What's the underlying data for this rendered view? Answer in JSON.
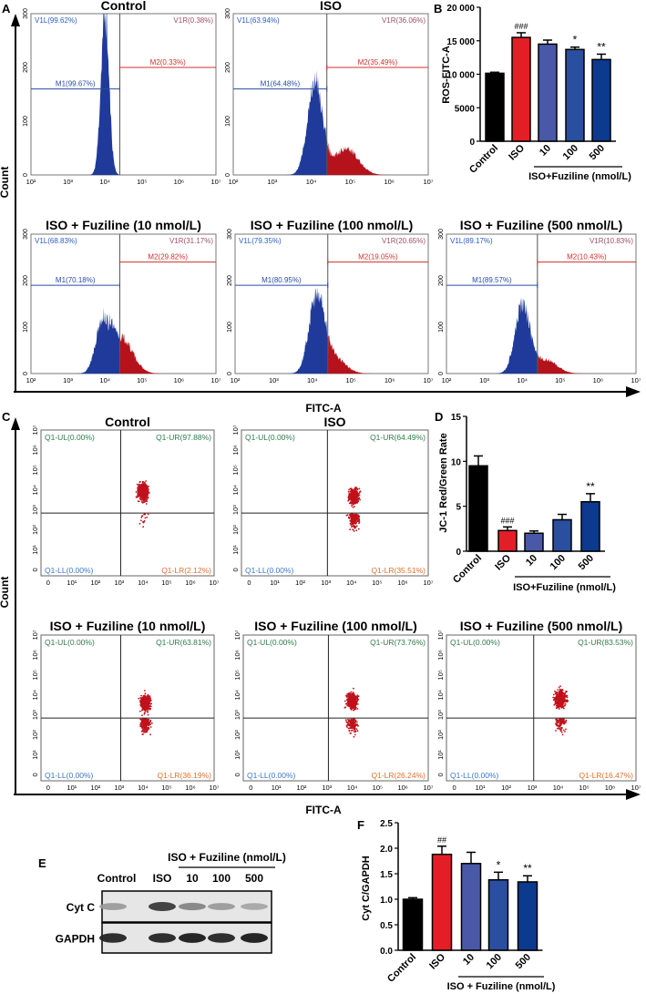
{
  "panel_labels": {
    "A": "A",
    "B": "B",
    "C": "C",
    "D": "D",
    "E": "E",
    "F": "F"
  },
  "panel_a": {
    "ylabel": "Count",
    "xlabel": "FITC-A",
    "yticks": [
      "0",
      "100",
      "200",
      "300"
    ],
    "xticks": [
      "10²",
      "10³",
      "10⁴",
      "10⁵",
      "10⁶",
      "10⁷"
    ],
    "histograms": [
      {
        "title": "Control",
        "v1l": "V1L(99.62%)",
        "v1r": "V1R(0.38%)",
        "m1": "M1(99.67%)",
        "m2": "M2(0.33%)",
        "peak_log10": 4.0,
        "peak_count": 300,
        "tail_log10": 4.9,
        "tail_count": 0
      },
      {
        "title": "ISO",
        "v1l": "V1L(63.94%)",
        "v1r": "V1R(36.06%)",
        "m1": "M1(64.48%)",
        "m2": "M2(35.49%)",
        "peak_log10": 4.1,
        "peak_count": 180,
        "tail_log10": 4.9,
        "tail_count": 50
      },
      {
        "title": "ISO + Fuziline (10 nmol/L)",
        "v1l": "V1L(68.83%)",
        "v1r": "V1R(31.17%)",
        "m1": "M1(70.18%)",
        "m2": "M2(29.82%)",
        "peak_log10": 3.95,
        "peak_count": 120,
        "tail_log10": 4.45,
        "tail_count": 75
      },
      {
        "title": "ISO + Fuziline (100 nmol/L)",
        "v1l": "V1L(79.35%)",
        "v1r": "V1R(20.65%)",
        "m1": "M1(80.95%)",
        "m2": "M2(19.05%)",
        "peak_log10": 4.1,
        "peak_count": 165,
        "tail_log10": 4.5,
        "tail_count": 40
      },
      {
        "title": "ISO + Fuziline (500 nmol/L)",
        "v1l": "V1L(89.17%)",
        "v1r": "V1R(10.83%)",
        "m1": "M1(89.57%)",
        "m2": "M2(10.43%)",
        "peak_log10": 4.0,
        "peak_count": 150,
        "tail_log10": 4.6,
        "tail_count": 30
      }
    ]
  },
  "panel_c": {
    "ylabel": "Count",
    "xlabel": "FITC-A",
    "ticks": [
      "0",
      "10¹",
      "10²",
      "10³",
      "10⁴",
      "10⁵",
      "10⁶",
      "10⁷"
    ],
    "scatters": [
      {
        "title": "Control",
        "ul": "Q1-UL(0.00%)",
        "ur": "Q1-UR(97.88%)",
        "ll": "Q1-LL(0.00%)",
        "lr": "Q1-LR(2.12%)",
        "lr_fraction": 0.0212,
        "center_x_log10": 4.0,
        "center_y_log10": 3.9
      },
      {
        "title": "ISO",
        "ul": "Q1-UL(0.00%)",
        "ur": "Q1-UR(64.49%)",
        "ll": "Q1-LL(0.00%)",
        "lr": "Q1-LR(35.51%)",
        "lr_fraction": 0.3551,
        "center_x_log10": 4.1,
        "center_y_log10": 3.7
      },
      {
        "title": "ISO + Fuziline (10 nmol/L)",
        "ul": "Q1-UL(0.00%)",
        "ur": "Q1-UR(63.81%)",
        "ll": "Q1-LL(0.00%)",
        "lr": "Q1-LR(36.19%)",
        "lr_fraction": 0.3619,
        "center_x_log10": 4.1,
        "center_y_log10": 3.6
      },
      {
        "title": "ISO + Fuziline (100 nmol/L)",
        "ul": "Q1-UL(0.00%)",
        "ur": "Q1-UR(73.76%)",
        "ll": "Q1-LL(0.00%)",
        "lr": "Q1-LR(26.24%)",
        "lr_fraction": 0.2624,
        "center_x_log10": 4.0,
        "center_y_log10": 3.7
      },
      {
        "title": "ISO + Fuziline (500 nmol/L)",
        "ul": "Q1-UL(0.00%)",
        "ur": "Q1-UR(83.53%)",
        "ll": "Q1-LL(0.00%)",
        "lr": "Q1-LR(16.47%)",
        "lr_fraction": 0.1647,
        "center_x_log10": 4.1,
        "center_y_log10": 3.8
      }
    ]
  },
  "panel_e": {
    "group_label": "ISO + Fuziline (nmol/L)",
    "lanes": [
      "Control",
      "ISO",
      "10",
      "100",
      "500"
    ],
    "rows": [
      {
        "label": "Cyt C",
        "intensity": [
          0.35,
          0.8,
          0.45,
          0.35,
          0.3
        ]
      },
      {
        "label": "GAPDH",
        "intensity": [
          0.9,
          0.9,
          0.95,
          0.9,
          0.95
        ]
      }
    ]
  },
  "colors": {
    "control": "#000000",
    "iso": "#e41e26",
    "f10": "#4a58a8",
    "f100": "#2a4ea0",
    "f500": "#0c3a8e",
    "hist_blue": "#1f3a9a",
    "hist_red": "#b5121b",
    "dot": "#c0121c"
  },
  "chart_data": [
    {
      "id": "B",
      "type": "bar",
      "ylabel": "ROS-FITC-A",
      "xlabel": "ISO+Fuziline (nmol/L)",
      "categories": [
        "Control",
        "ISO",
        "10",
        "100",
        "500"
      ],
      "values": [
        10150,
        15500,
        14500,
        13700,
        12200
      ],
      "errors": [
        150,
        700,
        600,
        350,
        800
      ],
      "annotations": [
        "",
        "###",
        "",
        "*",
        "**"
      ],
      "ylim": [
        0,
        20000
      ],
      "yticks": [
        0,
        5000,
        10000,
        15000,
        20000
      ],
      "ytick_labels": [
        "0",
        "5000",
        "10 000",
        "15 000",
        "20 000"
      ]
    },
    {
      "id": "D",
      "type": "bar",
      "ylabel": "JC-1 Red/Green Rate",
      "xlabel": "ISO+Fuziline (nmol/L)",
      "categories": [
        "Control",
        "ISO",
        "10",
        "100",
        "500"
      ],
      "values": [
        9.5,
        2.3,
        2.0,
        3.5,
        5.5
      ],
      "errors": [
        1.1,
        0.4,
        0.25,
        0.6,
        0.9
      ],
      "annotations": [
        "",
        "###",
        "",
        "",
        "**"
      ],
      "ylim": [
        0,
        15
      ],
      "yticks": [
        0,
        5,
        10,
        15
      ],
      "ytick_labels": [
        "0",
        "5",
        "10",
        "15"
      ]
    },
    {
      "id": "F",
      "type": "bar",
      "ylabel": "Cyt C/GAPDH",
      "xlabel": "ISO + Fuziline (nmol/L)",
      "categories": [
        "Control",
        "ISO",
        "10",
        "100",
        "500"
      ],
      "values": [
        1.0,
        1.88,
        1.7,
        1.38,
        1.34
      ],
      "errors": [
        0.03,
        0.16,
        0.22,
        0.15,
        0.12
      ],
      "annotations": [
        "",
        "##",
        "",
        "*",
        "**"
      ],
      "ylim": [
        0,
        2.5
      ],
      "yticks": [
        0,
        0.5,
        1.0,
        1.5,
        2.0,
        2.5
      ],
      "ytick_labels": [
        "0.0",
        "0.5",
        "1.0",
        "1.5",
        "2.0",
        "2.5"
      ]
    }
  ]
}
